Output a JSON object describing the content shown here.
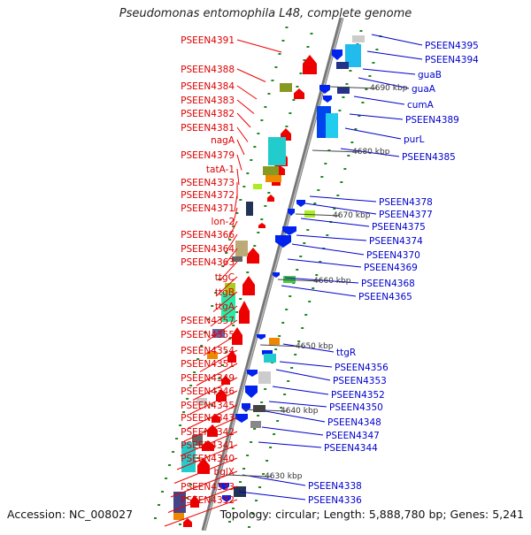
{
  "title": "Pseudomonas entomophila L48, complete genome",
  "footer": {
    "accession": "Accession: NC_008027",
    "topology": "Topology: circular; Length: 5,888,780 bp; Genes: 5,241"
  },
  "colors": {
    "forward_label": "#dd0000",
    "reverse_label": "#0000cc",
    "backbone": "#888888",
    "tick": "#228822"
  },
  "kbp_markers": [
    "4690 kbp",
    "4680 kbp",
    "4670 kbp",
    "4660 kbp",
    "4650 kbp",
    "4640 kbp",
    "4630 kbp"
  ],
  "forward_genes": [
    "PSEEN4391",
    "PSEEN4388",
    "PSEEN4384",
    "PSEEN4383",
    "PSEEN4382",
    "PSEEN4381",
    "nagA",
    "PSEEN4379",
    "tatA-1",
    "PSEEN4373",
    "PSEEN4372",
    "PSEEN4371",
    "lon-2",
    "PSEEN4366",
    "PSEEN4364",
    "PSEEN4363",
    "ttgC",
    "ttgB",
    "ttgA",
    "PSEEN4357",
    "PSEEN4355",
    "PSEEN4354",
    "PSEEN4351",
    "PSEEN4349",
    "PSEEN4346",
    "PSEEN4345",
    "PSEEN4343",
    "PSEEN4342",
    "PSEEN4341",
    "PSEEN4340",
    "bglX",
    "PSEEN4333",
    "PSEEN4332"
  ],
  "reverse_genes": [
    "PSEEN4395",
    "PSEEN4394",
    "guaB",
    "guaA",
    "cumA",
    "PSEEN4389",
    "purL",
    "PSEEN4385",
    "PSEEN4378",
    "PSEEN4377",
    "PSEEN4375",
    "PSEEN4374",
    "PSEEN4370",
    "PSEEN4369",
    "PSEEN4368",
    "PSEEN4365",
    "ttgR",
    "PSEEN4356",
    "PSEEN4353",
    "PSEEN4352",
    "PSEEN4350",
    "PSEEN4348",
    "PSEEN4347",
    "PSEEN4344",
    "PSEEN4338",
    "PSEEN4336"
  ]
}
